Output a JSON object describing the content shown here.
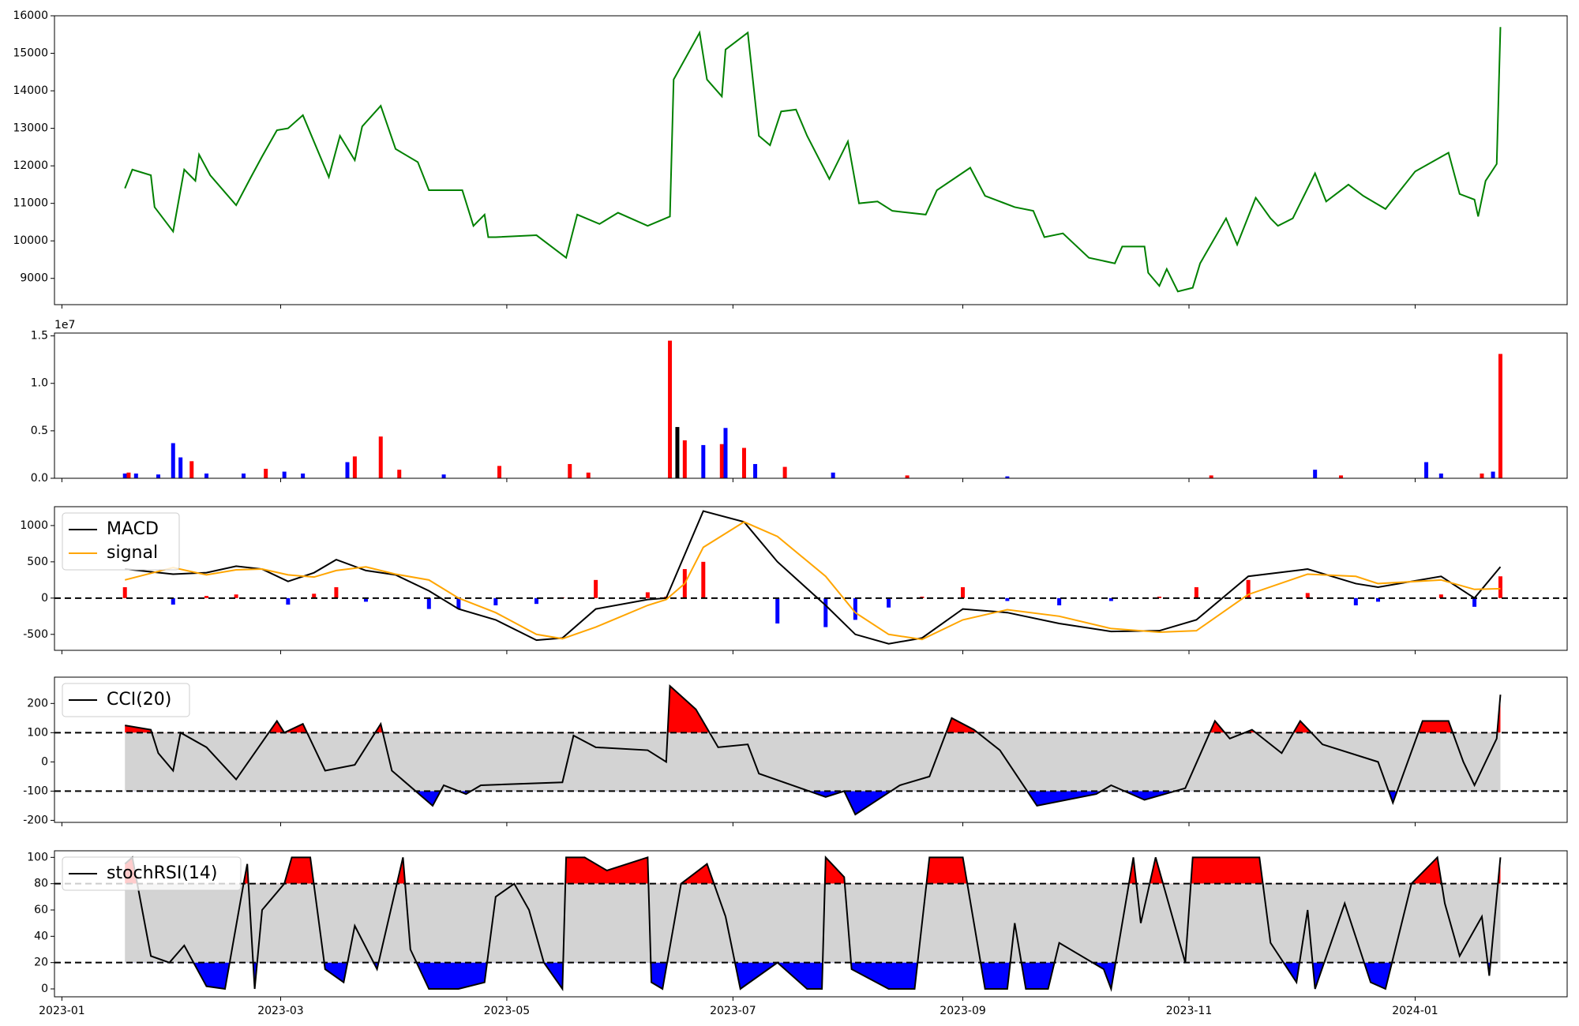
{
  "chart_data": [
    {
      "type": "line",
      "color": "#008000",
      "x": [
        "2023-01-18",
        "2023-01-20",
        "2023-01-25",
        "2023-01-26",
        "2023-01-31",
        "2023-02-03",
        "2023-02-06",
        "2023-02-07",
        "2023-02-10",
        "2023-02-17",
        "2023-02-21",
        "2023-02-24",
        "2023-02-28",
        "2023-03-03",
        "2023-03-07",
        "2023-03-14",
        "2023-03-17",
        "2023-03-21",
        "2023-03-23",
        "2023-03-28",
        "2023-04-01",
        "2023-04-07",
        "2023-04-10",
        "2023-04-19",
        "2023-04-22",
        "2023-04-25",
        "2023-04-26",
        "2023-04-28",
        "2023-05-09",
        "2023-05-17",
        "2023-05-20",
        "2023-05-26",
        "2023-05-31",
        "2023-06-08",
        "2023-06-14",
        "2023-06-15",
        "2023-06-22",
        "2023-06-24",
        "2023-06-28",
        "2023-06-29",
        "2023-07-05",
        "2023-07-08",
        "2023-07-11",
        "2023-07-14",
        "2023-07-18",
        "2023-07-21",
        "2023-07-27",
        "2023-08-01",
        "2023-08-04",
        "2023-08-09",
        "2023-08-13",
        "2023-08-22",
        "2023-08-25",
        "2023-09-03",
        "2023-09-07",
        "2023-09-15",
        "2023-09-20",
        "2023-09-23",
        "2023-09-28",
        "2023-10-05",
        "2023-10-12",
        "2023-10-14",
        "2023-10-20",
        "2023-10-21",
        "2023-10-24",
        "2023-10-26",
        "2023-10-29",
        "2023-11-02",
        "2023-11-04",
        "2023-11-11",
        "2023-11-14",
        "2023-11-19",
        "2023-11-23",
        "2023-11-25",
        "2023-11-29",
        "2023-12-05",
        "2023-12-08",
        "2023-12-14",
        "2023-12-18",
        "2023-12-24",
        "2024-01-01",
        "2024-01-10",
        "2024-01-13",
        "2024-01-17",
        "2024-01-18",
        "2024-01-20",
        "2024-01-23",
        "2024-01-24"
      ],
      "values": [
        11400,
        11900,
        11750,
        10900,
        10250,
        11900,
        11600,
        12300,
        11750,
        10950,
        11700,
        12250,
        12950,
        13000,
        13350,
        11700,
        12800,
        12150,
        13050,
        13600,
        12450,
        12100,
        11350,
        11350,
        10400,
        10700,
        10100,
        10100,
        10150,
        9550,
        10700,
        10450,
        10750,
        10400,
        10650,
        14300,
        15550,
        14300,
        13850,
        15100,
        15550,
        12800,
        12550,
        13450,
        13500,
        12800,
        11650,
        12650,
        11000,
        11050,
        10800,
        10700,
        11350,
        11950,
        11200,
        10900,
        10800,
        10100,
        10200,
        9550,
        9400,
        9850,
        9850,
        9150,
        8800,
        9250,
        8650,
        8750,
        9400,
        10600,
        9900,
        11150,
        10600,
        10400,
        10600,
        11800,
        11050,
        11500,
        11200,
        10850,
        11850,
        12350,
        11250,
        11100,
        10650,
        11600,
        12050,
        15700
      ],
      "xlim": [
        "2022-12-30",
        "2024-02-11"
      ],
      "ylim": [
        8300,
        16000
      ],
      "yticks": [
        9000,
        10000,
        11000,
        12000,
        13000,
        14000,
        15000,
        16000
      ]
    },
    {
      "type": "bar",
      "offset_label": "1e7",
      "x": [
        "2023-01-18",
        "2023-01-19",
        "2023-01-21",
        "2023-01-27",
        "2023-01-31",
        "2023-02-02",
        "2023-02-05",
        "2023-02-09",
        "2023-02-19",
        "2023-02-25",
        "2023-03-02",
        "2023-03-07",
        "2023-03-19",
        "2023-03-21",
        "2023-03-28",
        "2023-04-02",
        "2023-04-14",
        "2023-04-29",
        "2023-05-18",
        "2023-05-23",
        "2023-06-14",
        "2023-06-16",
        "2023-06-18",
        "2023-06-23",
        "2023-06-28",
        "2023-06-29",
        "2023-07-04",
        "2023-07-07",
        "2023-07-15",
        "2023-07-28",
        "2023-08-17",
        "2023-09-13",
        "2023-11-07",
        "2023-12-05",
        "2023-12-12",
        "2024-01-04",
        "2024-01-08",
        "2024-01-19",
        "2024-01-22",
        "2024-01-24"
      ],
      "values": [
        0.05,
        0.06,
        0.05,
        0.04,
        0.37,
        0.22,
        0.18,
        0.05,
        0.05,
        0.1,
        0.07,
        0.05,
        0.17,
        0.23,
        0.44,
        0.09,
        0.04,
        0.13,
        0.15,
        0.06,
        1.45,
        0.54,
        0.4,
        0.35,
        0.36,
        0.53,
        0.32,
        0.15,
        0.12,
        0.06,
        0.03,
        0.02,
        0.03,
        0.09,
        0.03,
        0.17,
        0.05,
        0.05,
        0.07,
        1.31
      ],
      "colors": [
        "#0000ff",
        "#ff0000",
        "#0000ff",
        "#0000ff",
        "#0000ff",
        "#0000ff",
        "#ff0000",
        "#0000ff",
        "#0000ff",
        "#ff0000",
        "#0000ff",
        "#0000ff",
        "#0000ff",
        "#ff0000",
        "#ff0000",
        "#ff0000",
        "#0000ff",
        "#ff0000",
        "#ff0000",
        "#ff0000",
        "#ff0000",
        "#000000",
        "#ff0000",
        "#0000ff",
        "#ff0000",
        "#0000ff",
        "#ff0000",
        "#0000ff",
        "#ff0000",
        "#0000ff",
        "#ff0000",
        "#0000ff",
        "#ff0000",
        "#0000ff",
        "#ff0000",
        "#0000ff",
        "#0000ff",
        "#ff0000",
        "#0000ff",
        "#ff0000"
      ],
      "xlim": [
        "2022-12-30",
        "2024-02-11"
      ],
      "ylim": [
        0,
        1.53
      ],
      "yticks": [
        {
          "value": 0,
          "label": "0.0"
        },
        0.5,
        {
          "value": 1,
          "label": "1.0"
        },
        1.5
      ]
    },
    {
      "type": "macd",
      "legend": "upper left",
      "x": [
        "2023-01-18",
        "2023-01-31",
        "2023-02-09",
        "2023-02-17",
        "2023-02-24",
        "2023-03-03",
        "2023-03-10",
        "2023-03-16",
        "2023-03-24",
        "2023-04-01",
        "2023-04-10",
        "2023-04-18",
        "2023-04-28",
        "2023-05-09",
        "2023-05-16",
        "2023-05-25",
        "2023-06-08",
        "2023-06-13",
        "2023-06-18",
        "2023-06-23",
        "2023-07-04",
        "2023-07-13",
        "2023-07-26",
        "2023-08-03",
        "2023-08-12",
        "2023-08-21",
        "2023-09-01",
        "2023-09-13",
        "2023-09-27",
        "2023-10-11",
        "2023-10-24",
        "2023-11-03",
        "2023-11-17",
        "2023-12-03",
        "2023-12-16",
        "2023-12-22",
        "2024-01-08",
        "2024-01-17",
        "2024-01-24"
      ],
      "series": [
        {
          "name": "MACD",
          "color": "#000000",
          "values": [
            400,
            330,
            350,
            440,
            400,
            230,
            350,
            530,
            380,
            320,
            100,
            -150,
            -300,
            -580,
            -550,
            -150,
            -20,
            0,
            600,
            1200,
            1050,
            500,
            -100,
            -500,
            -630,
            -550,
            -150,
            -200,
            -350,
            -460,
            -450,
            -300,
            300,
            400,
            200,
            150,
            300,
            0,
            430
          ]
        },
        {
          "name": "signal",
          "color": "#ffa500",
          "values": [
            250,
            420,
            320,
            390,
            400,
            320,
            290,
            380,
            430,
            330,
            250,
            0,
            -200,
            -500,
            -560,
            -400,
            -100,
            -20,
            200,
            700,
            1050,
            850,
            300,
            -200,
            -500,
            -570,
            -300,
            -160,
            -250,
            -420,
            -470,
            -450,
            50,
            330,
            300,
            200,
            250,
            120,
            130
          ]
        }
      ],
      "histogram": {
        "values": [
          150,
          -90,
          30,
          50,
          0,
          -90,
          60,
          150,
          -50,
          -10,
          -150,
          -150,
          -100,
          -80,
          10,
          250,
          80,
          20,
          400,
          500,
          0,
          -350,
          -400,
          -300,
          -130,
          20,
          150,
          -40,
          -100,
          -40,
          20,
          150,
          250,
          70,
          -100,
          -50,
          50,
          -120,
          300
        ],
        "colors": [
          "#ff0000",
          "#0000ff"
        ]
      },
      "hlines": [
        0
      ],
      "xlim": [
        "2022-12-30",
        "2024-02-11"
      ],
      "ylim": [
        -720,
        1260
      ],
      "yticks": [
        -500,
        0,
        500,
        1000
      ]
    },
    {
      "type": "band",
      "legend": "upper left",
      "x": [
        "2023-01-18",
        "2023-01-25",
        "2023-01-27",
        "2023-01-31",
        "2023-02-02",
        "2023-02-09",
        "2023-02-17",
        "2023-02-28",
        "2023-03-02",
        "2023-03-07",
        "2023-03-13",
        "2023-03-21",
        "2023-03-28",
        "2023-03-31",
        "2023-04-11",
        "2023-04-14",
        "2023-04-20",
        "2023-04-24",
        "2023-05-16",
        "2023-05-19",
        "2023-05-25",
        "2023-06-08",
        "2023-06-13",
        "2023-06-14",
        "2023-06-21",
        "2023-06-27",
        "2023-07-05",
        "2023-07-08",
        "2023-07-26",
        "2023-07-31",
        "2023-08-03",
        "2023-08-15",
        "2023-08-23",
        "2023-08-29",
        "2023-09-04",
        "2023-09-11",
        "2023-09-21",
        "2023-10-07",
        "2023-10-11",
        "2023-10-20",
        "2023-10-31",
        "2023-11-08",
        "2023-11-12",
        "2023-11-18",
        "2023-11-26",
        "2023-12-01",
        "2023-12-07",
        "2023-12-22",
        "2023-12-26",
        "2024-01-03",
        "2024-01-10",
        "2024-01-14",
        "2024-01-17",
        "2024-01-23",
        "2024-01-24"
      ],
      "series": [
        {
          "name": "CCI(20)",
          "color": "#000000",
          "values": [
            125,
            110,
            30,
            -30,
            100,
            50,
            -60,
            140,
            100,
            130,
            -30,
            -10,
            130,
            -30,
            -150,
            -80,
            -110,
            -80,
            -70,
            90,
            50,
            40,
            0,
            260,
            180,
            50,
            60,
            -40,
            -120,
            -100,
            -180,
            -80,
            -50,
            150,
            110,
            40,
            -150,
            -110,
            -80,
            -130,
            -90,
            140,
            80,
            110,
            30,
            140,
            60,
            0,
            -140,
            140,
            140,
            0,
            -80,
            80,
            230
          ]
        }
      ],
      "levels": [
        100,
        -100
      ],
      "fill_colors": {
        "above": "#ff0000",
        "between": "#d3d3d3",
        "below": "#0000ff"
      },
      "xlim": [
        "2022-12-30",
        "2024-02-11"
      ],
      "ylim": [
        -207,
        290
      ],
      "yticks": [
        -200,
        -100,
        0,
        100,
        200
      ]
    },
    {
      "type": "band",
      "legend": "upper left",
      "x": [
        "2023-01-18",
        "2023-01-20",
        "2023-01-25",
        "2023-01-30",
        "2023-02-03",
        "2023-02-09",
        "2023-02-14",
        "2023-02-19",
        "2023-02-20",
        "2023-02-22",
        "2023-02-24",
        "2023-03-02",
        "2023-03-04",
        "2023-03-09",
        "2023-03-13",
        "2023-03-18",
        "2023-03-21",
        "2023-03-27",
        "2023-04-03",
        "2023-04-05",
        "2023-04-10",
        "2023-04-18",
        "2023-04-25",
        "2023-04-28",
        "2023-05-03",
        "2023-05-07",
        "2023-05-11",
        "2023-05-16",
        "2023-05-17",
        "2023-05-22",
        "2023-05-28",
        "2023-06-08",
        "2023-06-09",
        "2023-06-12",
        "2023-06-17",
        "2023-06-24",
        "2023-06-29",
        "2023-07-03",
        "2023-07-13",
        "2023-07-21",
        "2023-07-25",
        "2023-07-26",
        "2023-07-31",
        "2023-08-02",
        "2023-08-12",
        "2023-08-19",
        "2023-08-23",
        "2023-09-01",
        "2023-09-07",
        "2023-09-13",
        "2023-09-15",
        "2023-09-18",
        "2023-09-24",
        "2023-09-27",
        "2023-10-09",
        "2023-10-11",
        "2023-10-17",
        "2023-10-19",
        "2023-10-23",
        "2023-10-31",
        "2023-11-02",
        "2023-11-11",
        "2023-11-16",
        "2023-11-20",
        "2023-11-23",
        "2023-11-30",
        "2023-12-03",
        "2023-12-05",
        "2023-12-13",
        "2023-12-20",
        "2023-12-24",
        "2023-12-31",
        "2024-01-07",
        "2024-01-09",
        "2024-01-13",
        "2024-01-19",
        "2024-01-21",
        "2024-01-24"
      ],
      "series": [
        {
          "name": "stochRSI(14)",
          "color": "#000000",
          "values": [
            95,
            100,
            25,
            20,
            33,
            2,
            0,
            80,
            95,
            0,
            60,
            80,
            100,
            100,
            15,
            5,
            48,
            15,
            100,
            30,
            0,
            0,
            5,
            70,
            80,
            60,
            20,
            0,
            100,
            100,
            90,
            100,
            5,
            0,
            80,
            95,
            55,
            0,
            20,
            0,
            0,
            100,
            85,
            15,
            0,
            0,
            100,
            100,
            0,
            0,
            50,
            0,
            0,
            35,
            15,
            0,
            100,
            50,
            100,
            20,
            100,
            100,
            100,
            100,
            35,
            5,
            60,
            0,
            65,
            5,
            0,
            80,
            100,
            65,
            25,
            55,
            10,
            100
          ]
        }
      ],
      "levels": [
        80,
        20
      ],
      "fill_colors": {
        "above": "#ff0000",
        "between": "#d3d3d3",
        "below": "#0000ff"
      },
      "xlim": [
        "2022-12-30",
        "2024-02-11"
      ],
      "ylim": [
        -6,
        105
      ],
      "yticks": [
        0,
        20,
        40,
        60,
        80,
        100
      ],
      "xticks": [
        {
          "value": "2023-01-01",
          "label": "2023-01"
        },
        {
          "value": "2023-03-01",
          "label": "2023-03"
        },
        {
          "value": "2023-05-01",
          "label": "2023-05"
        },
        {
          "value": "2023-07-01",
          "label": "2023-07"
        },
        {
          "value": "2023-09-01",
          "label": "2023-09"
        },
        {
          "value": "2023-11-01",
          "label": "2023-11"
        },
        {
          "value": "2024-01-01",
          "label": "2024-01"
        }
      ]
    }
  ]
}
